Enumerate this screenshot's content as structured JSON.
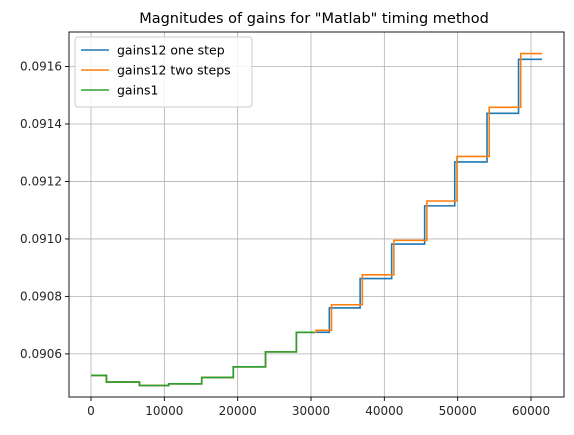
{
  "chart_data": {
    "type": "line",
    "title": "Magnitudes of gains for \"Matlab\" timing method",
    "xlabel": "",
    "ylabel": "",
    "xlim": [
      -3000,
      64500
    ],
    "ylim": [
      0.09045,
      0.09172
    ],
    "grid": true,
    "legend_position": "top-left",
    "x_ticks": [
      0,
      10000,
      20000,
      30000,
      40000,
      50000,
      60000
    ],
    "x_tick_labels": [
      "0",
      "10000",
      "20000",
      "30000",
      "40000",
      "50000",
      "60000"
    ],
    "y_ticks": [
      0.0906,
      0.0908,
      0.091,
      0.0912,
      0.0914,
      0.0916
    ],
    "y_tick_labels": [
      "0.0906",
      "0.0908",
      "0.0910",
      "0.0912",
      "0.0914",
      "0.0916"
    ],
    "series": [
      {
        "name": "gains12 one step",
        "color": "#1f77b4",
        "step": true,
        "points": [
          [
            0,
            0.090525
          ],
          [
            2100,
            0.090502
          ],
          [
            6600,
            0.09049
          ],
          [
            10600,
            0.090496
          ],
          [
            15100,
            0.090518
          ],
          [
            19400,
            0.090555
          ],
          [
            23800,
            0.090607
          ],
          [
            28000,
            0.090675
          ],
          [
            32500,
            0.09076
          ],
          [
            36700,
            0.090862
          ],
          [
            41000,
            0.090982
          ],
          [
            45500,
            0.091115
          ],
          [
            49600,
            0.091268
          ],
          [
            54000,
            0.091437
          ],
          [
            58300,
            0.091625
          ],
          [
            61500,
            0.091625
          ]
        ]
      },
      {
        "name": "gains12 two steps",
        "color": "#ff7f0e",
        "step": true,
        "points": [
          [
            0,
            0.090525
          ],
          [
            2100,
            0.090502
          ],
          [
            6600,
            0.09049
          ],
          [
            10600,
            0.090496
          ],
          [
            15100,
            0.090518
          ],
          [
            19400,
            0.090555
          ],
          [
            23800,
            0.090607
          ],
          [
            28000,
            0.090675
          ],
          [
            30700,
            0.090682
          ],
          [
            32800,
            0.090771
          ],
          [
            37000,
            0.090875
          ],
          [
            41300,
            0.090995
          ],
          [
            45800,
            0.091132
          ],
          [
            49900,
            0.091287
          ],
          [
            54300,
            0.091458
          ],
          [
            58600,
            0.091645
          ],
          [
            61500,
            0.091645
          ]
        ]
      },
      {
        "name": "gains1",
        "color": "#2ca02c",
        "step": true,
        "points": [
          [
            0,
            0.090525
          ],
          [
            2100,
            0.090502
          ],
          [
            6600,
            0.09049
          ],
          [
            10600,
            0.090496
          ],
          [
            15100,
            0.090518
          ],
          [
            19400,
            0.090555
          ],
          [
            23800,
            0.090607
          ],
          [
            28000,
            0.090675
          ],
          [
            30500,
            0.090675
          ]
        ]
      }
    ]
  }
}
